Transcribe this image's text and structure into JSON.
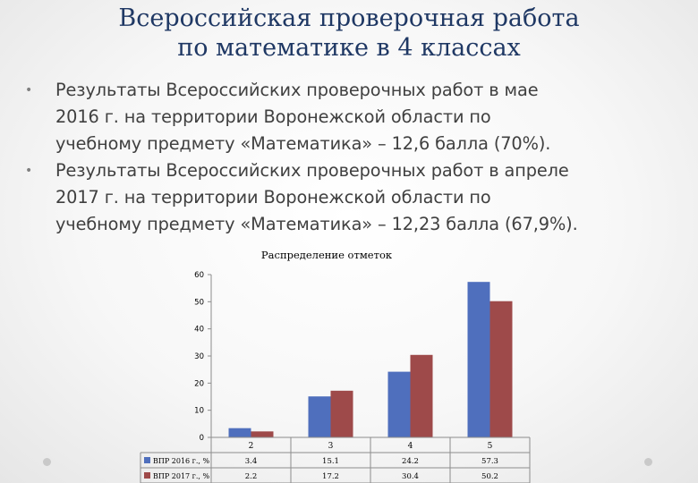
{
  "slide": {
    "title_lines": [
      "Всероссийская проверочная работа",
      "по математике в 4 классах"
    ],
    "bullets": [
      {
        "lines": [
          "Результаты Всероссийских проверочных работ в мае",
          "2016 г. на территории Воронежской области по",
          "учебному предмету «Математика» – 12,6 балла (70%)."
        ]
      },
      {
        "lines": [
          "Результаты Всероссийских проверочных работ в апреле",
          "2017 г. на территории Воронежской области по",
          "учебному предмету «Математика» – 12,23 балла (67,9%)."
        ]
      }
    ],
    "bullet_glyph": "•"
  },
  "chart_data": {
    "type": "bar",
    "title": "Распределение отметок",
    "categories": [
      "2",
      "3",
      "4",
      "5"
    ],
    "series": [
      {
        "name": "ВПР 2016 г., %",
        "values": [
          3.4,
          15.1,
          24.2,
          57.3
        ],
        "labels": [
          "3.4",
          "15.1",
          "24.2",
          "57.3"
        ],
        "color": "#4f6fbd"
      },
      {
        "name": "ВПР 2017 г., %",
        "values": [
          2.2,
          17.2,
          30.4,
          50.2
        ],
        "labels": [
          "2.2",
          "17.2",
          "30.4",
          "50.2"
        ],
        "color": "#9e4a4a"
      }
    ],
    "ylim": [
      0,
      60
    ],
    "yticks": [
      "0",
      "10",
      "20",
      "30",
      "40",
      "50",
      "60"
    ],
    "grid": false,
    "legend": "data-table"
  }
}
